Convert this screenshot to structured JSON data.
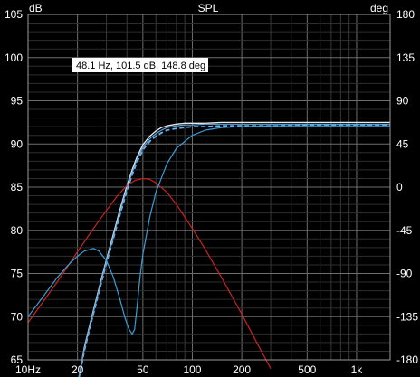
{
  "chart_data": {
    "type": "line",
    "title": "SPL",
    "ylabel_left": "dB",
    "ylabel_right": "deg",
    "x_scale": "log",
    "xlim": [
      10,
      1600
    ],
    "ylim_left": [
      65,
      105
    ],
    "ylim_right": [
      -180,
      180
    ],
    "grid": true,
    "background": "#000000",
    "x_ticks": [
      {
        "v": 10,
        "label": "10Hz"
      },
      {
        "v": 20,
        "label": "20"
      },
      {
        "v": 50,
        "label": "50"
      },
      {
        "v": 100,
        "label": "100"
      },
      {
        "v": 200,
        "label": "200"
      },
      {
        "v": 500,
        "label": "500"
      },
      {
        "v": 1000,
        "label": "1k"
      }
    ],
    "y_ticks_left": [
      {
        "v": 105,
        "label": "105"
      },
      {
        "v": 100,
        "label": "100"
      },
      {
        "v": 95,
        "label": "95"
      },
      {
        "v": 90,
        "label": "90"
      },
      {
        "v": 85,
        "label": "85"
      },
      {
        "v": 80,
        "label": "80"
      },
      {
        "v": 75,
        "label": "75"
      },
      {
        "v": 70,
        "label": "70"
      },
      {
        "v": 65,
        "label": "65"
      }
    ],
    "y_ticks_right": [
      {
        "v": 180,
        "label": "180"
      },
      {
        "v": 135,
        "label": "135"
      },
      {
        "v": 90,
        "label": "90"
      },
      {
        "v": 45,
        "label": "45"
      },
      {
        "v": 0,
        "label": "0"
      },
      {
        "v": -45,
        "label": "-45"
      },
      {
        "v": -90,
        "label": "-90"
      },
      {
        "v": -135,
        "label": "-135"
      },
      {
        "v": -180,
        "label": "-180"
      }
    ],
    "cursor_readout": "48.1 Hz, 101.5 dB, 148.8 deg",
    "series": [
      {
        "color": "#e8e8e8",
        "width": 1.3,
        "dash": "",
        "x": [
          20.0,
          22.0,
          24.0,
          26.0,
          28.0,
          30.0,
          33.0,
          36.0,
          40.0,
          43.0,
          46.0,
          50.0,
          55.0,
          60.0,
          65.0,
          70.0,
          80.0,
          90.0,
          100.0,
          120.0,
          150.0,
          200.0,
          300.0,
          500.0,
          800.0,
          1200.0,
          1600.0
        ],
        "y": [
          62.0,
          66.4,
          69.4,
          72.0,
          74.4,
          76.6,
          79.5,
          82.2,
          85.2,
          87.0,
          88.5,
          89.9,
          90.9,
          91.5,
          91.9,
          92.1,
          92.3,
          92.4,
          92.4,
          92.4,
          92.5,
          92.5,
          92.5,
          92.5,
          92.5,
          92.5,
          92.5
        ]
      },
      {
        "color": "#6db0e8",
        "width": 1.8,
        "dash": "5,3",
        "x": [
          20.0,
          22.0,
          24.0,
          26.0,
          28.0,
          30.0,
          33.0,
          36.0,
          40.0,
          43.0,
          46.0,
          50.0,
          55.0,
          60.0,
          65.0,
          70.0,
          80.0,
          90.0,
          100.0,
          120.0,
          150.0,
          200.0,
          300.0,
          500.0,
          800.0,
          1200.0,
          1600.0
        ],
        "y": [
          62.0,
          66.0,
          69.0,
          71.6,
          74.0,
          76.2,
          79.0,
          81.6,
          84.6,
          86.4,
          87.9,
          89.3,
          90.3,
          90.9,
          91.3,
          91.6,
          91.8,
          91.9,
          92.0,
          92.0,
          92.1,
          92.1,
          92.1,
          92.2,
          92.2,
          92.2,
          92.2
        ]
      },
      {
        "color": "#cc2222",
        "width": 1.2,
        "dash": "",
        "x": [
          10.0,
          12.0,
          15.0,
          18.0,
          20.0,
          25.0,
          30.0,
          35.0,
          40.0,
          45.0,
          50.0,
          55.0,
          60.0,
          70.0,
          80.0,
          100.0,
          120.0,
          150.0,
          200.0,
          250.0,
          300.0
        ],
        "y": [
          69.3,
          71.4,
          74.0,
          76.2,
          77.5,
          80.2,
          82.3,
          84.0,
          85.2,
          85.8,
          86.0,
          85.9,
          85.5,
          84.4,
          83.0,
          80.2,
          77.8,
          74.6,
          70.3,
          66.8,
          64.0
        ]
      },
      {
        "color": "#3a9ed6",
        "width": 1.2,
        "dash": "",
        "x": [
          10.0,
          12.0,
          15.0,
          18.0,
          20.0,
          22.0,
          25.0,
          27.0,
          30.0,
          33.0,
          36.0,
          39.0,
          41.0,
          43.0,
          44.5,
          46.0,
          48.0,
          50.0,
          55.0,
          60.0,
          70.0,
          80.0,
          100.0,
          120.0,
          150.0,
          200.0,
          300.0,
          500.0,
          800.0,
          1200.0,
          1600.0
        ],
        "y": [
          70.0,
          72.0,
          74.5,
          76.2,
          77.0,
          77.6,
          77.9,
          77.6,
          76.5,
          74.6,
          72.2,
          69.8,
          68.6,
          68.0,
          68.5,
          71.0,
          74.5,
          77.2,
          81.5,
          84.4,
          87.7,
          89.5,
          91.0,
          91.6,
          91.9,
          92.0,
          92.1,
          92.1,
          92.1,
          92.1,
          92.1
        ]
      },
      {
        "color": "#5aa6de",
        "width": 1.2,
        "dash": "",
        "x": [
          20.0,
          22.0,
          24.0,
          26.0,
          28.0,
          30.0,
          33.0,
          36.0,
          40.0,
          43.0,
          46.0,
          50.0,
          55.0,
          60.0,
          65.0,
          70.0,
          80.0,
          90.0,
          100.0,
          120.0,
          150.0,
          200.0,
          300.0,
          500.0,
          800.0,
          1200.0,
          1600.0
        ],
        "y": [
          62.2,
          66.2,
          69.2,
          71.8,
          74.2,
          76.4,
          79.2,
          81.9,
          84.9,
          86.7,
          88.2,
          89.6,
          90.6,
          91.2,
          91.6,
          91.9,
          92.1,
          92.2,
          92.2,
          92.3,
          92.3,
          92.3,
          92.3,
          92.3,
          92.3,
          92.3,
          92.3
        ]
      }
    ]
  }
}
